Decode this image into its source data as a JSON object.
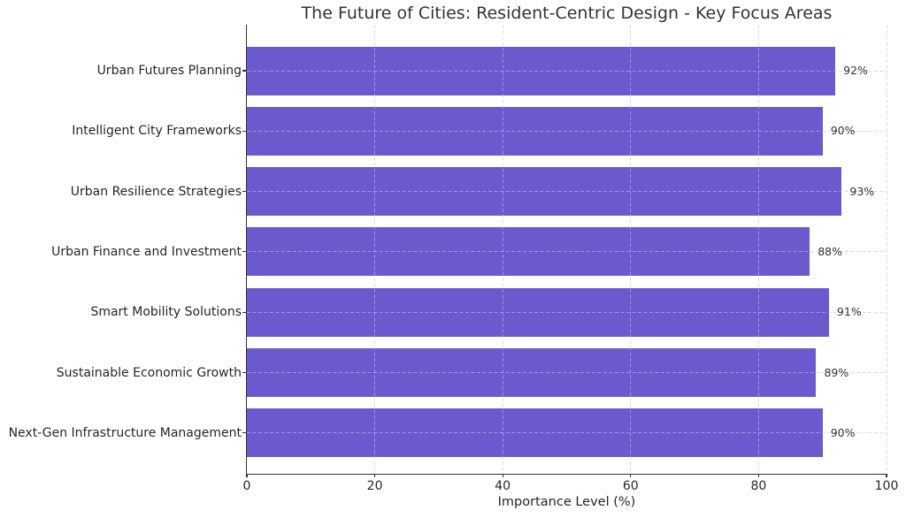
{
  "chart_data": {
    "type": "bar",
    "orientation": "horizontal",
    "title": "The Future of Cities: Resident-Centric Design - Key Focus Areas",
    "xlabel": "Importance Level (%)",
    "ylabel": "",
    "categories": [
      "Urban Futures Planning",
      "Intelligent City Frameworks",
      "Urban Resilience Strategies",
      "Urban Finance and Investment",
      "Smart Mobility Solutions",
      "Sustainable Economic Growth",
      "Next-Gen Infrastructure Management"
    ],
    "values": [
      92,
      90,
      93,
      88,
      91,
      89,
      90
    ],
    "value_labels": [
      "92%",
      "90%",
      "93%",
      "88%",
      "91%",
      "89%",
      "90%"
    ],
    "xlim": [
      0,
      100
    ],
    "xticks": [
      0,
      20,
      40,
      60,
      80,
      100
    ],
    "xtick_labels": [
      "0",
      "20",
      "40",
      "60",
      "80",
      "100"
    ],
    "grid": {
      "visible": true,
      "axis": "both",
      "style": "dashed"
    },
    "legend_position": "none",
    "colors": {
      "bar": "#6a5acd",
      "grid": "#c9c9c9",
      "grid_over_bar": "rgba(255,255,255,0.35)",
      "spine": "#333333",
      "text": "#262626",
      "value_text": "#333333",
      "background": "#ffffff"
    }
  }
}
